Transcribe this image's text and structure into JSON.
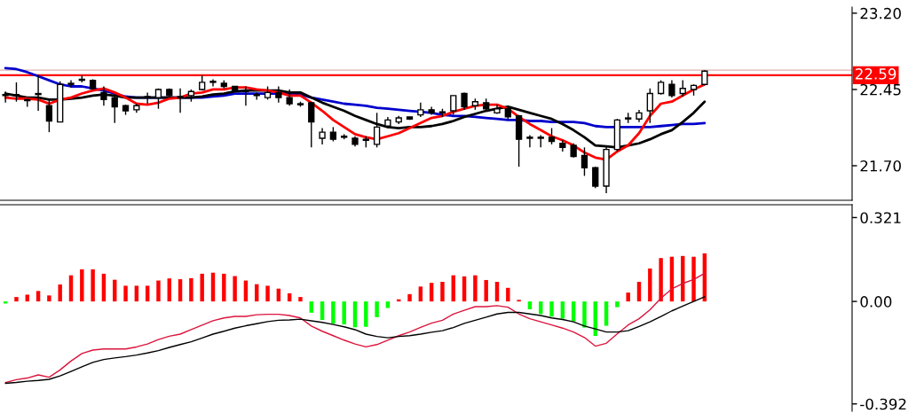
{
  "chart_data": [
    {
      "type": "candlestick",
      "tick_labels": "y",
      "categories": [
        null,
        null,
        null,
        null,
        null,
        null,
        null,
        null,
        null,
        null,
        null,
        null,
        null,
        null,
        null,
        null,
        null,
        null,
        null,
        null,
        null,
        null,
        null,
        null,
        null,
        null,
        null,
        null,
        null,
        null,
        null,
        null,
        null,
        null,
        null,
        null,
        null,
        null,
        null,
        null,
        null,
        null,
        null,
        null,
        null,
        null,
        null,
        null,
        null,
        null,
        null,
        null,
        null,
        null,
        null,
        null,
        null,
        null,
        null,
        null,
        null,
        null,
        null,
        null,
        null,
        null,
        null,
        null,
        null,
        null,
        null,
        null,
        null,
        null,
        null,
        null,
        null,
        null
      ],
      "ohlc": [
        [
          22.4,
          22.43,
          22.32,
          22.39
        ],
        [
          22.4,
          22.52,
          22.33,
          22.39
        ],
        [
          22.35,
          22.36,
          22.28,
          22.34
        ],
        [
          22.4,
          22.59,
          22.24,
          22.41
        ],
        [
          22.29,
          22.35,
          22.03,
          22.14
        ],
        [
          22.13,
          22.53,
          22.13,
          22.5
        ],
        [
          22.5,
          22.54,
          22.47,
          22.51
        ],
        [
          22.54,
          22.59,
          22.52,
          22.55
        ],
        [
          22.54,
          22.55,
          22.45,
          22.46
        ],
        [
          22.42,
          22.48,
          22.29,
          22.35
        ],
        [
          22.37,
          22.39,
          22.12,
          22.28
        ],
        [
          22.29,
          22.3,
          22.2,
          22.24
        ],
        [
          22.25,
          22.31,
          22.22,
          22.29
        ],
        [
          22.37,
          22.42,
          22.31,
          22.38
        ],
        [
          22.37,
          22.46,
          22.26,
          22.45
        ],
        [
          22.45,
          22.46,
          22.38,
          22.39
        ],
        [
          22.37,
          22.46,
          22.22,
          22.38
        ],
        [
          22.39,
          22.45,
          22.33,
          22.43
        ],
        [
          22.45,
          22.59,
          22.44,
          22.52
        ],
        [
          22.52,
          22.55,
          22.48,
          22.53
        ],
        [
          22.51,
          22.54,
          22.46,
          22.48
        ],
        [
          22.48,
          22.48,
          22.42,
          22.43
        ],
        [
          22.44,
          22.48,
          22.29,
          22.43
        ],
        [
          22.39,
          22.42,
          22.35,
          22.4
        ],
        [
          22.37,
          22.48,
          22.35,
          22.42
        ],
        [
          22.42,
          22.48,
          22.32,
          22.37
        ],
        [
          22.37,
          22.45,
          22.29,
          22.31
        ],
        [
          22.31,
          22.33,
          22.28,
          22.3
        ],
        [
          22.32,
          22.33,
          21.88,
          22.13
        ],
        [
          21.97,
          22.07,
          21.91,
          22.03
        ],
        [
          22.03,
          22.08,
          21.94,
          21.96
        ],
        [
          21.98,
          22.01,
          21.96,
          21.99
        ],
        [
          21.97,
          21.99,
          21.89,
          21.91
        ],
        [
          21.95,
          21.99,
          21.88,
          21.96
        ],
        [
          21.91,
          22.22,
          21.88,
          22.08
        ],
        [
          22.09,
          22.18,
          22.07,
          22.15
        ],
        [
          22.13,
          22.19,
          22.11,
          22.17
        ],
        [
          22.18,
          22.18,
          22.15,
          22.16
        ],
        [
          22.2,
          22.32,
          22.18,
          22.25
        ],
        [
          22.25,
          22.28,
          22.2,
          22.22
        ],
        [
          22.22,
          22.26,
          22.18,
          22.23
        ],
        [
          22.24,
          22.39,
          22.2,
          22.39
        ],
        [
          22.41,
          22.42,
          22.25,
          22.28
        ],
        [
          22.29,
          22.36,
          22.25,
          22.33
        ],
        [
          22.32,
          22.36,
          22.24,
          22.26
        ],
        [
          22.22,
          22.3,
          22.21,
          22.26
        ],
        [
          22.26,
          22.29,
          22.16,
          22.18
        ],
        [
          22.19,
          22.2,
          21.69,
          21.96
        ],
        [
          21.98,
          22.0,
          21.88,
          21.97
        ],
        [
          21.98,
          22.0,
          21.88,
          21.97
        ],
        [
          21.98,
          22.07,
          21.91,
          21.94
        ],
        [
          21.92,
          21.95,
          21.84,
          21.88
        ],
        [
          21.9,
          21.92,
          21.78,
          21.79
        ],
        [
          21.8,
          21.88,
          21.6,
          21.68
        ],
        [
          21.68,
          21.69,
          21.48,
          21.5
        ],
        [
          21.5,
          21.9,
          21.43,
          21.86
        ],
        [
          21.86,
          22.16,
          21.84,
          22.15
        ],
        [
          22.16,
          22.22,
          22.12,
          22.17
        ],
        [
          22.16,
          22.25,
          22.13,
          22.22
        ],
        [
          22.24,
          22.46,
          22.12,
          22.41
        ],
        [
          22.41,
          22.54,
          22.4,
          22.52
        ],
        [
          22.5,
          22.54,
          22.37,
          22.39
        ],
        [
          22.41,
          22.54,
          22.38,
          22.46
        ],
        [
          22.45,
          22.5,
          22.39,
          22.49
        ],
        [
          22.5,
          22.64,
          22.49,
          22.63
        ],
        null,
        null,
        null,
        null,
        null,
        null,
        null,
        null,
        null,
        null,
        null,
        null,
        null
      ],
      "series": [
        {
          "type": "line",
          "color": "#0000cc",
          "values": [
            22.66,
            22.65,
            22.62,
            22.58,
            22.54,
            22.5,
            22.48,
            22.48,
            22.46,
            22.44,
            22.41,
            22.38,
            22.37,
            22.37,
            22.37,
            22.37,
            22.37,
            22.37,
            22.37,
            22.38,
            22.39,
            22.41,
            22.41,
            22.41,
            22.41,
            22.41,
            22.41,
            22.4,
            22.37,
            22.35,
            22.33,
            22.31,
            22.3,
            22.29,
            22.27,
            22.26,
            22.25,
            22.24,
            22.23,
            22.22,
            22.2,
            22.19,
            22.19,
            22.18,
            22.17,
            22.16,
            22.15,
            22.15,
            22.14,
            22.14,
            22.13,
            22.13,
            22.13,
            22.12,
            22.09,
            22.08,
            22.08,
            22.08,
            22.08,
            22.08,
            22.09,
            22.1,
            22.11,
            22.11,
            22.12,
            null,
            null,
            null,
            null,
            null,
            null,
            null,
            null,
            null,
            null,
            null,
            null,
            null
          ]
        },
        {
          "type": "line",
          "color": "#000000",
          "values": [
            22.41,
            22.39,
            22.37,
            22.37,
            22.35,
            22.35,
            22.36,
            22.37,
            22.39,
            22.4,
            22.39,
            22.37,
            22.37,
            22.37,
            22.37,
            22.37,
            22.37,
            22.37,
            22.38,
            22.4,
            22.41,
            22.43,
            22.44,
            22.44,
            22.44,
            22.44,
            22.42,
            22.42,
            22.37,
            22.32,
            22.28,
            22.24,
            22.19,
            22.15,
            22.11,
            22.08,
            22.07,
            22.08,
            22.08,
            22.09,
            22.11,
            22.14,
            22.18,
            22.21,
            22.24,
            22.26,
            22.28,
            22.25,
            22.22,
            22.19,
            22.16,
            22.11,
            22.05,
            21.98,
            21.9,
            21.89,
            21.88,
            21.9,
            21.92,
            21.96,
            22.01,
            22.05,
            22.13,
            22.22,
            22.33,
            null,
            null,
            null,
            null,
            null,
            null,
            null,
            null,
            null,
            null,
            null,
            null,
            null
          ]
        },
        {
          "type": "line",
          "color": "#ff0000",
          "values": [
            22.37,
            22.36,
            22.36,
            22.35,
            22.31,
            22.35,
            22.37,
            22.41,
            22.44,
            22.46,
            22.42,
            22.37,
            22.31,
            22.3,
            22.32,
            22.36,
            22.37,
            22.41,
            22.42,
            22.45,
            22.45,
            22.47,
            22.47,
            22.45,
            22.44,
            22.42,
            22.39,
            22.39,
            22.32,
            22.24,
            22.15,
            22.08,
            22.01,
            21.98,
            21.96,
            21.99,
            22.02,
            22.07,
            22.12,
            22.17,
            22.19,
            22.23,
            22.26,
            22.29,
            22.3,
            22.3,
            22.26,
            22.18,
            22.11,
            22.05,
            21.99,
            21.95,
            21.9,
            21.83,
            21.78,
            21.76,
            21.84,
            21.9,
            22.02,
            22.19,
            22.31,
            22.33,
            22.39,
            22.45,
            22.5,
            null,
            null,
            null,
            null,
            null,
            null,
            null,
            null,
            null,
            null,
            null,
            null,
            null
          ]
        }
      ],
      "ylim": [
        21.36,
        23.26
      ],
      "yticks": [
        {
          "value": 23.2,
          "label": "23.20"
        },
        {
          "value": 22.45,
          "label": "22.45"
        },
        {
          "value": 21.7,
          "label": "21.70"
        }
      ],
      "ref_lines": [
        {
          "axis": "y",
          "value": 22.64,
          "label": null,
          "color": "#e0b0b0"
        },
        {
          "axis": "y",
          "value": 22.59,
          "label": "22.59",
          "color": "#ff0000"
        }
      ]
    },
    {
      "type": "bar",
      "tick_labels": "y",
      "categories": [
        null,
        null,
        null,
        null,
        null,
        null,
        null,
        null,
        null,
        null,
        null,
        null,
        null,
        null,
        null,
        null,
        null,
        null,
        null,
        null,
        null,
        null,
        null,
        null,
        null,
        null,
        null,
        null,
        null,
        null,
        null,
        null,
        null,
        null,
        null,
        null,
        null,
        null,
        null,
        null,
        null,
        null,
        null,
        null,
        null,
        null,
        null,
        null,
        null,
        null,
        null,
        null,
        null,
        null,
        null,
        null,
        null,
        null,
        null,
        null,
        null,
        null,
        null,
        null,
        null,
        null,
        null,
        null,
        null,
        null,
        null,
        null,
        null,
        null,
        null,
        null,
        null,
        null
      ],
      "series": [
        {
          "type": "bar",
          "values": [
            -0.008,
            0.017,
            0.026,
            0.04,
            0.023,
            0.065,
            0.1,
            0.123,
            0.123,
            0.106,
            0.083,
            0.06,
            0.06,
            0.06,
            0.08,
            0.088,
            0.085,
            0.089,
            0.106,
            0.11,
            0.106,
            0.097,
            0.08,
            0.066,
            0.06,
            0.049,
            0.031,
            0.017,
            -0.043,
            -0.071,
            -0.085,
            -0.088,
            -0.099,
            -0.097,
            -0.06,
            -0.025,
            0.008,
            0.028,
            0.057,
            0.071,
            0.075,
            0.1,
            0.096,
            0.1,
            0.082,
            0.075,
            0.052,
            0.006,
            -0.03,
            -0.048,
            -0.058,
            -0.066,
            -0.076,
            -0.1,
            -0.132,
            -0.093,
            -0.022,
            0.034,
            0.075,
            0.126,
            0.166,
            0.171,
            0.174,
            0.171,
            0.184,
            null,
            null,
            null,
            null,
            null,
            null,
            null,
            null,
            null,
            null,
            null,
            null,
            null
          ],
          "colors": [
            "#00ff00",
            "#ff0000",
            "#ff0000",
            "#ff0000",
            "#ff0000",
            "#ff0000",
            "#ff0000",
            "#ff0000",
            "#ff0000",
            "#ff0000",
            "#ff0000",
            "#ff0000",
            "#ff0000",
            "#ff0000",
            "#ff0000",
            "#ff0000",
            "#ff0000",
            "#ff0000",
            "#ff0000",
            "#ff0000",
            "#ff0000",
            "#ff0000",
            "#ff0000",
            "#ff0000",
            "#ff0000",
            "#ff0000",
            "#ff0000",
            "#ff0000",
            "#00ff00",
            "#00ff00",
            "#00ff00",
            "#00ff00",
            "#00ff00",
            "#00ff00",
            "#00ff00",
            "#00ff00",
            "#ff0000",
            "#ff0000",
            "#ff0000",
            "#ff0000",
            "#ff0000",
            "#ff0000",
            "#ff0000",
            "#ff0000",
            "#ff0000",
            "#ff0000",
            "#ff0000",
            "#ff0000",
            "#00ff00",
            "#00ff00",
            "#00ff00",
            "#00ff00",
            "#00ff00",
            "#00ff00",
            "#00ff00",
            "#00ff00",
            "#00ff00",
            "#ff0000",
            "#ff0000",
            "#ff0000",
            "#ff0000",
            "#ff0000",
            "#ff0000",
            "#ff0000",
            "#ff0000",
            null,
            null,
            null,
            null,
            null,
            null,
            null,
            null,
            null,
            null,
            null,
            null,
            null
          ]
        },
        {
          "type": "line",
          "color": "#dc143c",
          "values": [
            -0.31,
            -0.299,
            -0.293,
            -0.281,
            -0.29,
            -0.262,
            -0.228,
            -0.199,
            -0.186,
            -0.182,
            -0.182,
            -0.182,
            -0.174,
            -0.163,
            -0.146,
            -0.133,
            -0.125,
            -0.108,
            -0.091,
            -0.074,
            -0.063,
            -0.057,
            -0.057,
            -0.051,
            -0.049,
            -0.049,
            -0.054,
            -0.063,
            -0.094,
            -0.114,
            -0.131,
            -0.148,
            -0.163,
            -0.174,
            -0.165,
            -0.148,
            -0.131,
            -0.117,
            -0.099,
            -0.083,
            -0.072,
            -0.048,
            -0.034,
            -0.02,
            -0.02,
            -0.016,
            -0.022,
            -0.048,
            -0.066,
            -0.078,
            -0.09,
            -0.102,
            -0.117,
            -0.138,
            -0.171,
            -0.16,
            -0.124,
            -0.09,
            -0.066,
            -0.032,
            0.012,
            0.048,
            0.069,
            0.084,
            0.108,
            null,
            null,
            null,
            null,
            null,
            null,
            null,
            null,
            null,
            null,
            null,
            null,
            null
          ]
        },
        {
          "type": "line",
          "color": "#000000",
          "values": [
            -0.313,
            -0.31,
            -0.305,
            -0.302,
            -0.298,
            -0.285,
            -0.268,
            -0.25,
            -0.233,
            -0.222,
            -0.216,
            -0.211,
            -0.205,
            -0.197,
            -0.188,
            -0.176,
            -0.165,
            -0.154,
            -0.14,
            -0.125,
            -0.114,
            -0.102,
            -0.093,
            -0.085,
            -0.077,
            -0.072,
            -0.071,
            -0.068,
            -0.074,
            -0.08,
            -0.088,
            -0.097,
            -0.108,
            -0.125,
            -0.134,
            -0.139,
            -0.134,
            -0.131,
            -0.125,
            -0.118,
            -0.112,
            -0.1,
            -0.084,
            -0.072,
            -0.06,
            -0.048,
            -0.042,
            -0.042,
            -0.048,
            -0.054,
            -0.063,
            -0.069,
            -0.078,
            -0.094,
            -0.105,
            -0.117,
            -0.117,
            -0.112,
            -0.096,
            -0.078,
            -0.058,
            -0.036,
            -0.018,
            0.0,
            0.018,
            null,
            null,
            null,
            null,
            null,
            null,
            null,
            null,
            null,
            null,
            null,
            null,
            null
          ]
        }
      ],
      "ylim": [
        -0.42,
        0.37
      ],
      "yticks": [
        0.321,
        {
          "value": 0,
          "label": "0.00"
        },
        {
          "value": -0.392,
          "label": "-0.392"
        }
      ]
    }
  ]
}
